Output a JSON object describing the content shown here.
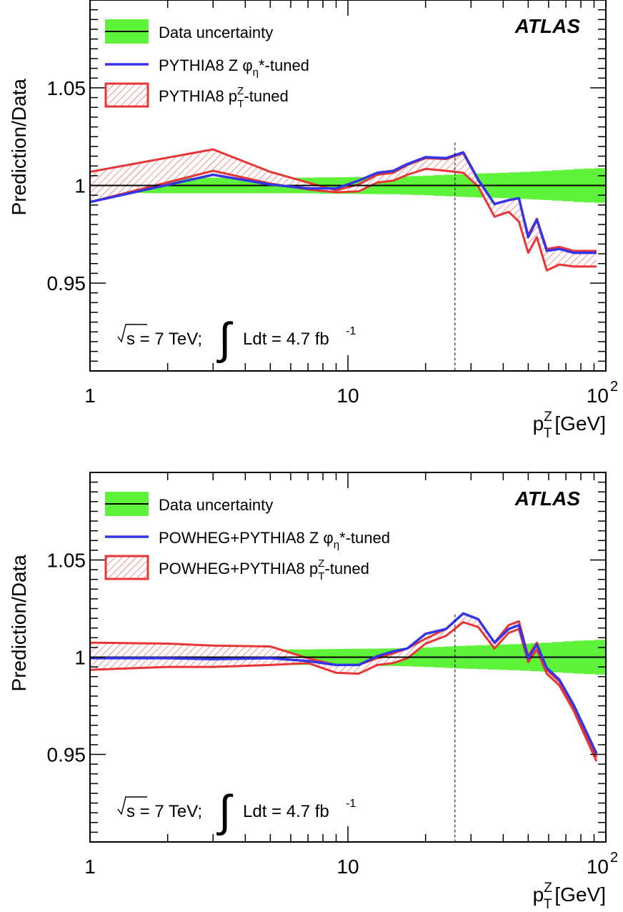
{
  "chart_data": [
    {
      "type": "line",
      "xscale": "log",
      "xlim": [
        1,
        100
      ],
      "ylim": [
        0.905,
        1.095
      ],
      "xlabel": "p_T^Z [GeV]",
      "ylabel": "Prediction/Data",
      "x_ticks": [
        {
          "value": 1,
          "label": "1"
        },
        {
          "value": 10,
          "label": "10"
        },
        {
          "value": 100,
          "label": "10",
          "exp": "2"
        }
      ],
      "y_ticks": [
        {
          "value": 0.95,
          "label": "0.95"
        },
        {
          "value": 1.0,
          "label": "1"
        },
        {
          "value": 1.05,
          "label": "1.05"
        }
      ],
      "brand": "ATLAS",
      "annotation": {
        "prefix": "s = 7 TeV;",
        "lumi": "Ldt = 4.7 fb",
        "lumi_exp": "-1"
      },
      "vline_x": 26,
      "legend": [
        {
          "key": "data",
          "label": "Data uncertainty"
        },
        {
          "key": "phi",
          "label": "PYTHIA8 Z φ",
          "sub": "η",
          "suffix": "*-tuned"
        },
        {
          "key": "pt",
          "label": "PYTHIA8 p",
          "sup": "Z",
          "sub": "T",
          "suffix": "-tuned"
        }
      ],
      "colors": {
        "data_band": "#5ef23a",
        "phi_line": "#3535e8",
        "pt_band": "#e83535"
      },
      "data_band": {
        "x": [
          1,
          2,
          4,
          7,
          10,
          15,
          20,
          30,
          40,
          50,
          60,
          80,
          100
        ],
        "half_width": [
          0.0035,
          0.004,
          0.004,
          0.004,
          0.0043,
          0.0045,
          0.005,
          0.006,
          0.0065,
          0.007,
          0.0075,
          0.0085,
          0.009
        ]
      },
      "series": [
        {
          "name": "PYTHIA8 Z φη*-tuned",
          "x": [
            1,
            3,
            5,
            7,
            9,
            11,
            13,
            15,
            17,
            20,
            24,
            28,
            32,
            37,
            42,
            46,
            50,
            54,
            59,
            66,
            75,
            92
          ],
          "values": [
            0.9915,
            1.0055,
            1.0005,
            0.9985,
            0.9985,
            1.0025,
            1.0065,
            1.0075,
            1.011,
            1.0145,
            1.014,
            1.017,
            1.003,
            0.9905,
            0.9925,
            0.9935,
            0.9735,
            0.9825,
            0.9665,
            0.9675,
            0.9655,
            0.9655
          ]
        }
      ],
      "band": {
        "name": "PYTHIA8 p_T^Z-tuned",
        "x": [
          1,
          3,
          5,
          7,
          9,
          11,
          13,
          15,
          17,
          20,
          24,
          28,
          32,
          37,
          42,
          46,
          50,
          54,
          59,
          66,
          75,
          92
        ],
        "upper": [
          1.007,
          1.0185,
          1.007,
          1.0015,
          0.9975,
          1.0005,
          1.0055,
          1.0065,
          1.0105,
          1.014,
          1.0135,
          1.0165,
          1.0025,
          0.9905,
          0.9925,
          0.9935,
          0.9745,
          0.983,
          0.9675,
          0.9685,
          0.9665,
          0.9665
        ],
        "lower": [
          0.9915,
          1.0075,
          1.001,
          0.998,
          0.9965,
          0.997,
          1.0015,
          1.0025,
          1.0055,
          1.0085,
          1.0075,
          1.0065,
          0.9995,
          0.984,
          0.9865,
          0.9815,
          0.9655,
          0.9735,
          0.9565,
          0.9595,
          0.9585,
          0.9585
        ]
      }
    },
    {
      "type": "line",
      "xscale": "log",
      "xlim": [
        1,
        100
      ],
      "ylim": [
        0.905,
        1.095
      ],
      "xlabel": "p_T^Z [GeV]",
      "ylabel": "Prediction/Data",
      "x_ticks": [
        {
          "value": 1,
          "label": "1"
        },
        {
          "value": 10,
          "label": "10"
        },
        {
          "value": 100,
          "label": "10",
          "exp": "2"
        }
      ],
      "y_ticks": [
        {
          "value": 0.95,
          "label": "0.95"
        },
        {
          "value": 1.0,
          "label": "1"
        },
        {
          "value": 1.05,
          "label": "1.05"
        }
      ],
      "brand": "ATLAS",
      "annotation": {
        "prefix": "s = 7 TeV;",
        "lumi": "Ldt = 4.7 fb",
        "lumi_exp": "-1"
      },
      "vline_x": 26,
      "legend": [
        {
          "key": "data",
          "label": "Data uncertainty"
        },
        {
          "key": "phi",
          "label": "POWHEG+PYTHIA8 Z φ",
          "sub": "η",
          "suffix": "*-tuned"
        },
        {
          "key": "pt",
          "label": "POWHEG+PYTHIA8 p",
          "sup": "Z",
          "sub": "T",
          "suffix": "-tuned"
        }
      ],
      "colors": {
        "data_band": "#5ef23a",
        "phi_line": "#3535e8",
        "pt_band": "#e83535"
      },
      "data_band": {
        "x": [
          1,
          2,
          4,
          7,
          10,
          15,
          20,
          30,
          40,
          50,
          60,
          80,
          100
        ],
        "half_width": [
          0.0035,
          0.004,
          0.004,
          0.004,
          0.0043,
          0.0045,
          0.005,
          0.006,
          0.0065,
          0.007,
          0.0075,
          0.0085,
          0.009
        ]
      },
      "series": [
        {
          "name": "POWHEG+PYTHIA8 Z φη*-tuned",
          "x": [
            1,
            2,
            3,
            5,
            7,
            9,
            11,
            13,
            15,
            17,
            20,
            24,
            28,
            32,
            37,
            42,
            46,
            50,
            54,
            59,
            66,
            75,
            92
          ],
          "values": [
            0.9995,
            0.9995,
            0.999,
            0.9995,
            0.998,
            0.996,
            0.996,
            1.0005,
            1.003,
            1.0045,
            1.012,
            1.0145,
            1.0225,
            1.0195,
            1.0075,
            1.0145,
            1.0165,
            0.9995,
            1.0065,
            0.9945,
            0.9885,
            0.9755,
            0.9505
          ]
        }
      ],
      "band": {
        "name": "POWHEG+PYTHIA8 p_T^Z-tuned",
        "x": [
          1,
          2,
          3,
          5,
          7,
          9,
          11,
          13,
          15,
          17,
          20,
          24,
          28,
          32,
          37,
          42,
          46,
          50,
          54,
          59,
          66,
          75,
          92
        ],
        "upper": [
          1.0075,
          1.007,
          1.006,
          1.0055,
          0.9995,
          0.996,
          0.996,
          0.9995,
          1.002,
          1.0045,
          1.0095,
          1.0145,
          1.0225,
          1.0195,
          1.0075,
          1.0165,
          1.0185,
          1.0005,
          1.0075,
          0.9935,
          0.9875,
          0.9745,
          0.9485
        ],
        "lower": [
          0.9935,
          0.995,
          0.995,
          0.996,
          0.997,
          0.992,
          0.9915,
          0.996,
          0.997,
          0.9995,
          1.007,
          1.011,
          1.018,
          1.0155,
          1.0045,
          1.0125,
          1.0145,
          0.9975,
          1.004,
          0.9915,
          0.9855,
          0.9725,
          0.9465
        ]
      }
    }
  ]
}
